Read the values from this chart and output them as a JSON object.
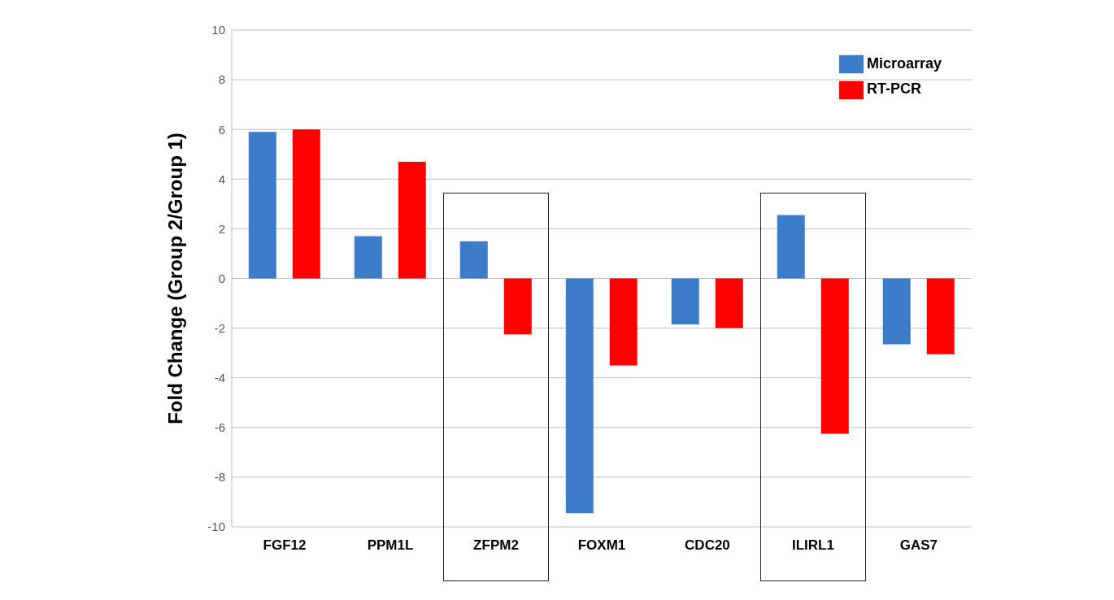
{
  "chart_data": {
    "type": "bar",
    "ylabel": "Fold Change (Group 2/Group 1)",
    "categories": [
      "FGF12",
      "PPM1L",
      "ZFPM2",
      "FOXM1",
      "CDC20",
      "ILIRL1",
      "GAS7"
    ],
    "series": [
      {
        "name": "Microarray",
        "color": "#3d7cc9",
        "values": [
          5.9,
          1.7,
          1.5,
          -9.45,
          -1.85,
          2.55,
          -2.65
        ]
      },
      {
        "name": "RT-PCR",
        "color": "#ff0000",
        "values": [
          6.0,
          4.7,
          -2.25,
          -3.5,
          -2.0,
          -6.25,
          -3.05
        ]
      }
    ],
    "ylim": [
      -10,
      10
    ],
    "yticks": [
      -10,
      -8,
      -6,
      -4,
      -2,
      0,
      2,
      4,
      6,
      8,
      10
    ],
    "grid": "y",
    "legend": "top right"
  }
}
